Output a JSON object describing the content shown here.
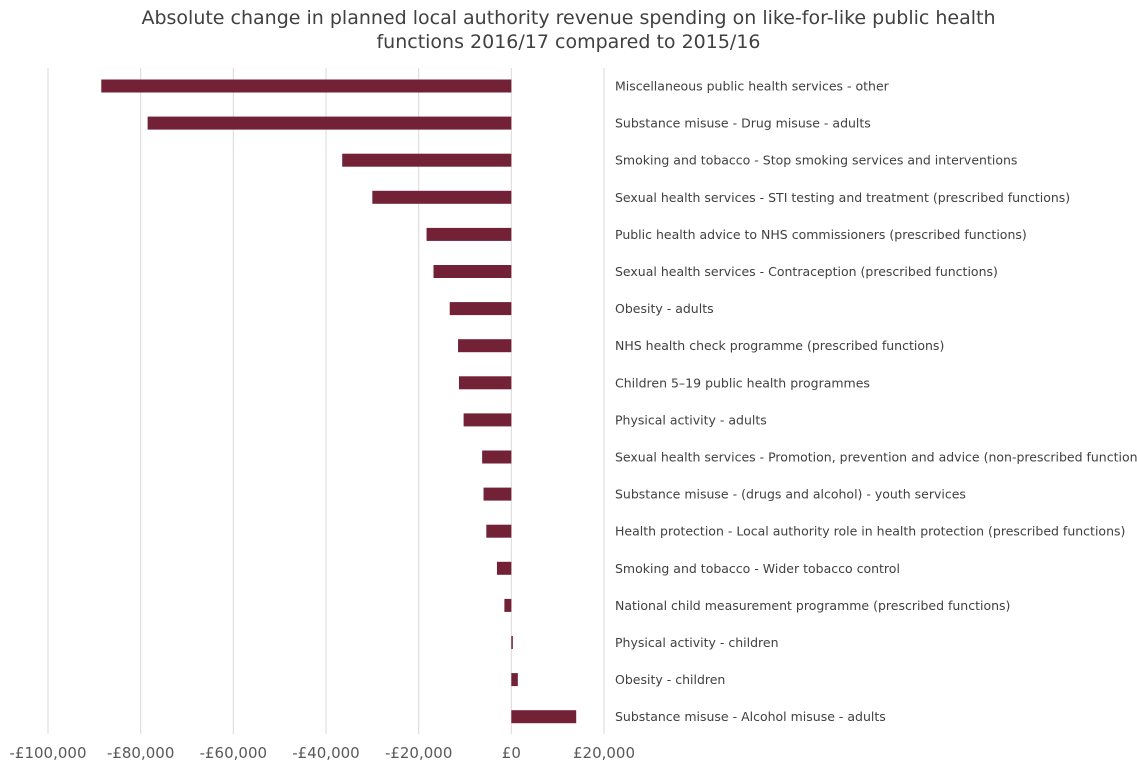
{
  "chart_data": {
    "type": "bar",
    "orientation": "horizontal",
    "title_lines": [
      "Absolute change in planned local authority revenue spending on like-for-like public health",
      "functions 2016/17 compared to 2015/16"
    ],
    "xlim": [
      -100000,
      20000
    ],
    "x_ticks": [
      -100000,
      -80000,
      -60000,
      -40000,
      -20000,
      0,
      20000
    ],
    "x_tick_labels": [
      "-£100,000",
      "-£80,000",
      "-£60,000",
      "-£40,000",
      "-£20,000",
      "£0",
      "£20,000"
    ],
    "grid": true,
    "color": "#722136",
    "categories": [
      "Miscellaneous public health services - other",
      "Substance misuse - Drug misuse - adults",
      "Smoking and tobacco - Stop smoking services and interventions",
      "Sexual health services - STI testing and treatment (prescribed functions)",
      "Public health advice to NHS commissioners (prescribed functions)",
      "Sexual health services - Contraception (prescribed functions)",
      "Obesity - adults",
      "NHS health check programme  (prescribed functions)",
      "Children 5–19 public health programmes",
      "Physical activity - adults",
      "Sexual health services - Promotion, prevention and advice (non-prescribed functions)",
      "Substance misuse - (drugs and alcohol) - youth services",
      "Health protection - Local authority role in health protection  (prescribed functions)",
      "Smoking and tobacco - Wider tobacco control",
      "National child measurement programme (prescribed functions)",
      "Physical activity - children",
      "Obesity - children",
      "Substance misuse - Alcohol misuse - adults"
    ],
    "values": [
      -88500,
      -78500,
      -36500,
      -30000,
      -18300,
      -16800,
      -13300,
      -11500,
      -11300,
      -10300,
      -6300,
      -6000,
      -5400,
      -3100,
      -1500,
      300,
      1400,
      14000
    ]
  }
}
